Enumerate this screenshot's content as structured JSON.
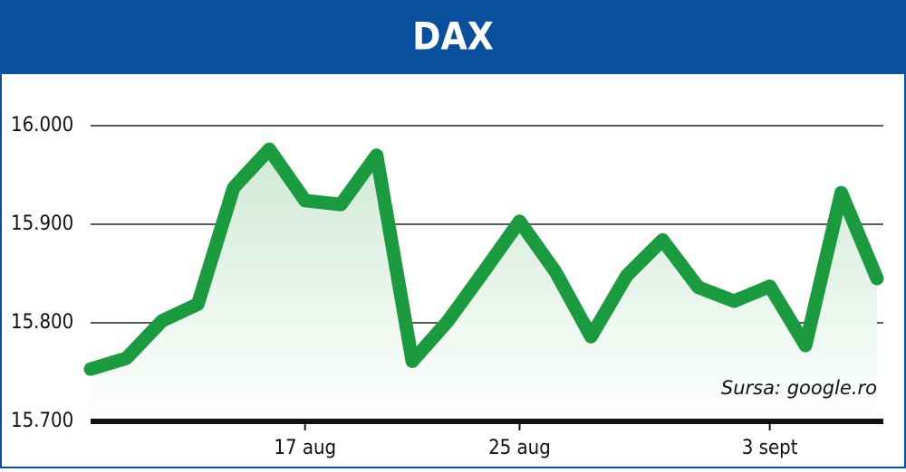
{
  "chart_data": {
    "type": "line",
    "title": "DAX",
    "categories": [
      null,
      null,
      null,
      null,
      null,
      null,
      "17 aug",
      null,
      null,
      null,
      null,
      null,
      "25 aug",
      null,
      null,
      null,
      null,
      null,
      null,
      "3 sept",
      null,
      null,
      null
    ],
    "values": [
      15753,
      15764,
      15802,
      15819,
      15937,
      15976,
      15924,
      15920,
      15970,
      15761,
      15802,
      15852,
      15903,
      15852,
      15786,
      15848,
      15884,
      15836,
      15822,
      15837,
      15777,
      15932,
      15845
    ],
    "color": "#1c9a40",
    "ylim": [
      15700,
      16000
    ],
    "yticks": [
      {
        "value": 15700,
        "label": "15.700"
      },
      {
        "value": 15800,
        "label": "15.800"
      },
      {
        "value": 15900,
        "label": "15.900"
      },
      {
        "value": 16000,
        "label": "16.000"
      }
    ],
    "grid": true,
    "annotation": "Sursa: google.ro"
  }
}
